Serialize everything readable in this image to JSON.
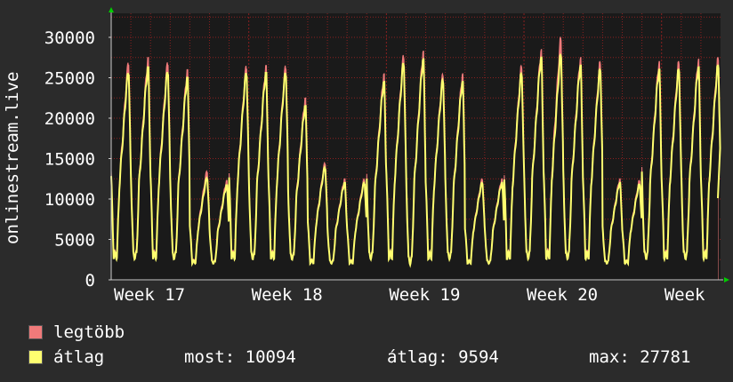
{
  "chart_data": {
    "type": "line",
    "ylabel": "onlinestream.live",
    "ylim": [
      0,
      30000
    ],
    "yticks": [
      0,
      5000,
      10000,
      15000,
      20000,
      25000,
      30000
    ],
    "x_week_labels": [
      "Week 17",
      "Week 18",
      "Week 19",
      "Week 20",
      "Week"
    ],
    "grid": true,
    "colors": {
      "background": "#2b2b2b",
      "plot_background": "#1a1a1a",
      "grid": "#8a2020",
      "max_fill": "#f07a7a",
      "avg_line": "#ffff70",
      "axis_arrow": "#00cc00"
    },
    "series": [
      {
        "name": "legtöbb",
        "daily_peaks": [
          27000,
          27500,
          27000,
          26000,
          13500,
          12300,
          26500,
          26500,
          26500,
          22500,
          14500,
          12500,
          12500,
          25500,
          27800,
          28300,
          25500,
          25500,
          12500,
          12500,
          26500,
          28500,
          30000,
          27500,
          27000,
          12500,
          12300,
          27000,
          27000,
          27300,
          27500
        ],
        "daily_troughs": [
          2500,
          2500,
          2500,
          2500,
          2000,
          2000,
          2500,
          2500,
          2500,
          2500,
          2000,
          2000,
          2000,
          2500,
          2500,
          1800,
          2500,
          2500,
          2000,
          2000,
          2500,
          2500,
          2500,
          2500,
          2500,
          2000,
          2000,
          2500,
          2500,
          2500,
          2500
        ],
        "end_value": 10094
      },
      {
        "name": "átlag",
        "daily_peaks": [
          25700,
          26300,
          25800,
          25000,
          12600,
          11700,
          25600,
          25600,
          25600,
          21500,
          13900,
          12000,
          12000,
          24500,
          26800,
          27300,
          24700,
          24500,
          12000,
          12000,
          25500,
          27500,
          27800,
          26500,
          26000,
          12000,
          11800,
          26000,
          26000,
          26300,
          26500
        ],
        "daily_troughs": [
          2300,
          2300,
          2300,
          2300,
          1900,
          1900,
          2300,
          2300,
          2300,
          2300,
          1900,
          1900,
          1900,
          2300,
          2300,
          1600,
          2300,
          2300,
          1900,
          1900,
          2300,
          2300,
          2300,
          2300,
          2300,
          1900,
          1900,
          2300,
          2300,
          2300,
          2300
        ],
        "end_value": 10094
      }
    ]
  },
  "legend": {
    "max_label": "legtöbb",
    "avg_label": "átlag"
  },
  "stats": {
    "now": "most: 10094",
    "avg": "átlag: 9594",
    "max": "max: 27781"
  }
}
